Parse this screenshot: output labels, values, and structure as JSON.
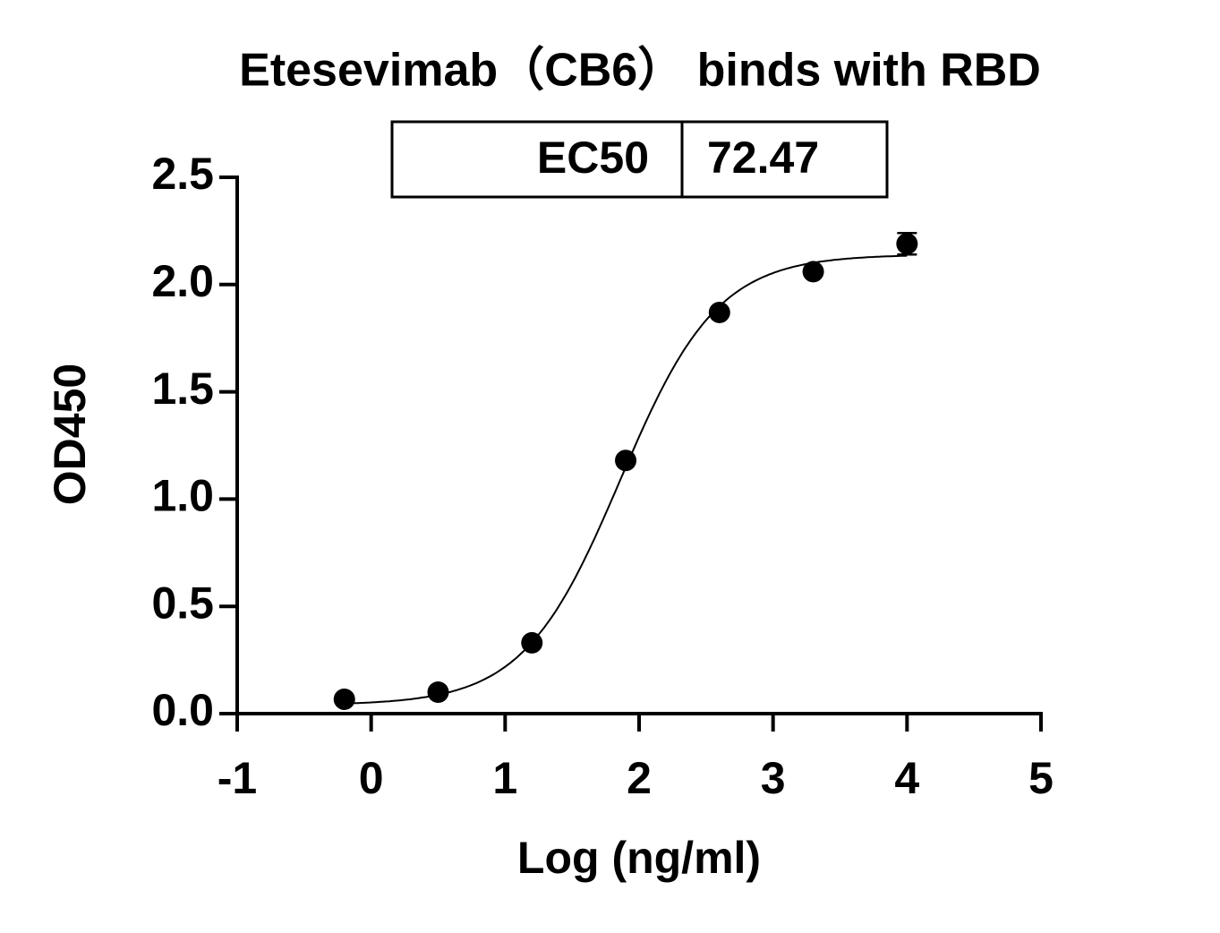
{
  "chart_data": {
    "type": "scatter",
    "title": "Etesevimab（CB6） binds with RBD",
    "x_label": "Log (ng/ml)",
    "y_label": "OD450",
    "x": [
      -0.2,
      0.5,
      1.2,
      1.9,
      2.6,
      3.3,
      4.0
    ],
    "values": [
      0.067,
      0.1,
      0.33,
      1.18,
      1.87,
      2.06,
      2.19
    ],
    "errors": [
      0,
      0,
      0,
      0,
      0,
      0,
      0.05
    ],
    "color": "#000000",
    "fit": {
      "bottom": 0.04,
      "top": 2.14,
      "hill": 1.2
    },
    "ec50_table": {
      "label": "EC50",
      "value": 72.47
    },
    "xlim": [
      -1,
      5
    ],
    "xticks": [
      -1,
      0,
      1,
      2,
      3,
      4,
      5
    ],
    "ylim": [
      0,
      2.5
    ],
    "yticks": [
      {
        "value": 0,
        "label": "0.0"
      },
      {
        "value": 0.5,
        "label": "0.5"
      },
      {
        "value": 1,
        "label": "1.0"
      },
      {
        "value": 1.5,
        "label": "1.5"
      },
      {
        "value": 2,
        "label": "2.0"
      },
      {
        "value": 2.5,
        "label": "2.5"
      }
    ]
  }
}
